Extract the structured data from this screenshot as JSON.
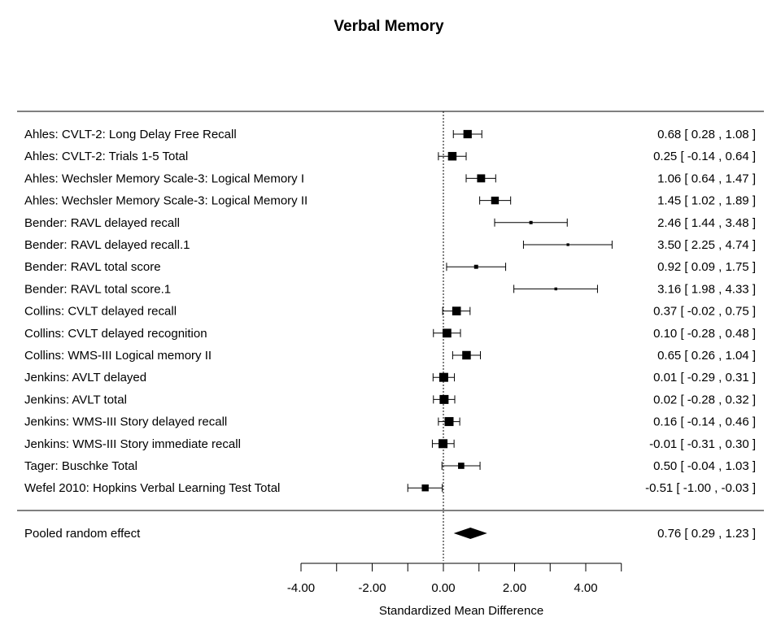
{
  "chart_data": {
    "type": "forest",
    "title": "Verbal Memory",
    "xlabel": "Standardized Mean Difference",
    "xlim": [
      -4,
      5
    ],
    "x_tick_labels": [
      "-4.00",
      "-2.00",
      "0.00",
      "2.00",
      "4.00"
    ],
    "reference_line": 0,
    "studies": [
      {
        "label": "Ahles: CVLT-2: Long Delay Free Recall",
        "estimate": 0.68,
        "lower": 0.28,
        "upper": 1.08,
        "ci_text": "0.68 [  0.28 ,  1.08 ]"
      },
      {
        "label": "Ahles: CVLT-2: Trials 1-5 Total",
        "estimate": 0.25,
        "lower": -0.14,
        "upper": 0.64,
        "ci_text": "0.25 [ -0.14 ,  0.64 ]"
      },
      {
        "label": "Ahles: Wechsler Memory Scale-3: Logical Memory I",
        "estimate": 1.06,
        "lower": 0.64,
        "upper": 1.47,
        "ci_text": "1.06 [  0.64 ,  1.47 ]"
      },
      {
        "label": "Ahles: Wechsler Memory Scale-3: Logical Memory II",
        "estimate": 1.45,
        "lower": 1.02,
        "upper": 1.89,
        "ci_text": "1.45 [  1.02 ,  1.89 ]"
      },
      {
        "label": "Bender: RAVL delayed recall",
        "estimate": 2.46,
        "lower": 1.44,
        "upper": 3.48,
        "ci_text": "2.46 [  1.44 ,  3.48 ]"
      },
      {
        "label": "Bender: RAVL delayed recall.1",
        "estimate": 3.5,
        "lower": 2.25,
        "upper": 4.74,
        "ci_text": "3.50 [  2.25 ,  4.74 ]"
      },
      {
        "label": "Bender: RAVL total score",
        "estimate": 0.92,
        "lower": 0.09,
        "upper": 1.75,
        "ci_text": "0.92 [  0.09 ,  1.75 ]"
      },
      {
        "label": "Bender: RAVL total score.1",
        "estimate": 3.16,
        "lower": 1.98,
        "upper": 4.33,
        "ci_text": "3.16 [  1.98 ,  4.33 ]"
      },
      {
        "label": "Collins: CVLT delayed recall",
        "estimate": 0.37,
        "lower": -0.02,
        "upper": 0.75,
        "ci_text": "0.37 [ -0.02 ,  0.75 ]"
      },
      {
        "label": "Collins: CVLT delayed recognition",
        "estimate": 0.1,
        "lower": -0.28,
        "upper": 0.48,
        "ci_text": "0.10 [ -0.28 ,  0.48 ]"
      },
      {
        "label": "Collins: WMS-III Logical memory II",
        "estimate": 0.65,
        "lower": 0.26,
        "upper": 1.04,
        "ci_text": "0.65 [  0.26 ,  1.04 ]"
      },
      {
        "label": "Jenkins: AVLT delayed",
        "estimate": 0.01,
        "lower": -0.29,
        "upper": 0.31,
        "ci_text": "0.01 [ -0.29 ,  0.31 ]"
      },
      {
        "label": "Jenkins: AVLT total",
        "estimate": 0.02,
        "lower": -0.28,
        "upper": 0.32,
        "ci_text": "0.02 [ -0.28 ,  0.32 ]"
      },
      {
        "label": "Jenkins: WMS-III Story delayed recall",
        "estimate": 0.16,
        "lower": -0.14,
        "upper": 0.46,
        "ci_text": "0.16 [ -0.14 ,  0.46 ]"
      },
      {
        "label": "Jenkins: WMS-III Story immediate recall",
        "estimate": -0.01,
        "lower": -0.31,
        "upper": 0.3,
        "ci_text": "-0.01 [ -0.31 ,  0.30 ]"
      },
      {
        "label": "Tager: Buschke Total",
        "estimate": 0.5,
        "lower": -0.04,
        "upper": 1.03,
        "ci_text": "0.50 [ -0.04 ,  1.03 ]"
      },
      {
        "label": "Wefel 2010: Hopkins Verbal Learning Test Total",
        "estimate": -0.51,
        "lower": -1.0,
        "upper": -0.03,
        "ci_text": "-0.51 [ -1.00 , -0.03 ]"
      }
    ],
    "pooled": {
      "label": "Pooled random effect",
      "estimate": 0.76,
      "lower": 0.29,
      "upper": 1.23,
      "ci_text": "0.76 [  0.29 ,  1.23 ]"
    }
  }
}
